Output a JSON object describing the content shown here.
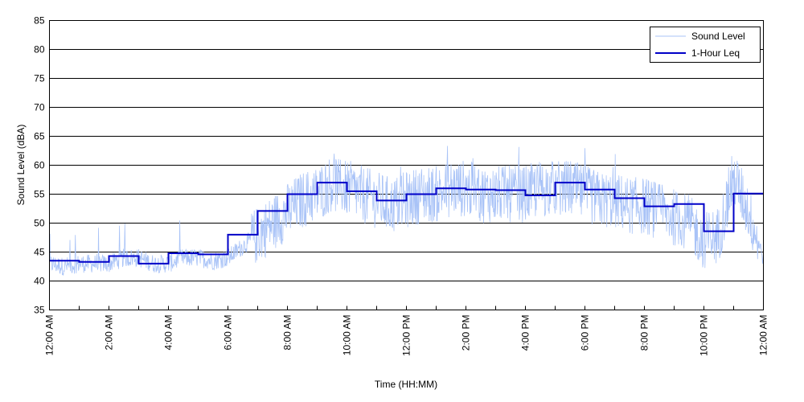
{
  "chart_data": {
    "type": "line",
    "xlabel": "Time (HH:MM)",
    "ylabel": "Sound Level (dBA)",
    "xlim": [
      0,
      24
    ],
    "ylim": [
      35,
      85
    ],
    "yticks": [
      35,
      40,
      45,
      50,
      55,
      60,
      65,
      70,
      75,
      80,
      85
    ],
    "xticks": [
      0,
      2,
      4,
      6,
      8,
      10,
      12,
      14,
      16,
      18,
      20,
      22,
      24
    ],
    "xtick_labels": [
      "12:00 AM",
      "2:00 AM",
      "4:00 AM",
      "6:00 AM",
      "8:00 AM",
      "10:00 AM",
      "12:00 PM",
      "2:00 PM",
      "4:00 PM",
      "6:00 PM",
      "8:00 PM",
      "10:00 PM",
      "12:00 AM"
    ],
    "grid": "horizontal",
    "legend_position": "top-right",
    "colors": {
      "sound_level": "#a9c3f7",
      "leq": "#0000c8"
    },
    "series": [
      {
        "name": "Sound Level",
        "x": [
          0.0,
          0.5,
          1.0,
          1.5,
          2.0,
          2.5,
          3.0,
          3.5,
          4.0,
          4.5,
          5.0,
          5.5,
          6.0,
          6.5,
          7.0,
          7.5,
          8.0,
          8.5,
          9.0,
          9.5,
          10.0,
          10.5,
          11.0,
          11.5,
          12.0,
          12.5,
          13.0,
          13.5,
          14.0,
          14.5,
          15.0,
          15.5,
          16.0,
          16.5,
          17.0,
          17.5,
          18.0,
          18.5,
          19.0,
          19.5,
          20.0,
          20.5,
          21.0,
          21.5,
          22.0,
          22.5,
          23.0,
          23.5,
          24.0
        ],
        "values": [
          43,
          42.5,
          43,
          43,
          43,
          44,
          44,
          43,
          43,
          44,
          44,
          43.5,
          44,
          46,
          48,
          50,
          52,
          54,
          55,
          57,
          56,
          55,
          54,
          53,
          54,
          55,
          55,
          56,
          56,
          55,
          55,
          55,
          55,
          56,
          56,
          56,
          55,
          54,
          54,
          53,
          53,
          52,
          51,
          50,
          47,
          48,
          58,
          52,
          44
        ]
      },
      {
        "name": "1-Hour Leq",
        "step": "post",
        "x": [
          0,
          1,
          2,
          3,
          4,
          5,
          6,
          7,
          8,
          9,
          10,
          11,
          12,
          13,
          14,
          15,
          16,
          17,
          18,
          19,
          20,
          21,
          22,
          23,
          24
        ],
        "values": [
          43.5,
          43.3,
          44.3,
          43.0,
          44.8,
          44.6,
          48.0,
          52.1,
          55.0,
          57.0,
          55.5,
          53.9,
          55.0,
          56.0,
          55.8,
          55.7,
          54.8,
          57.0,
          55.8,
          54.3,
          52.9,
          53.3,
          48.6,
          55.1,
          55.1
        ]
      }
    ]
  }
}
